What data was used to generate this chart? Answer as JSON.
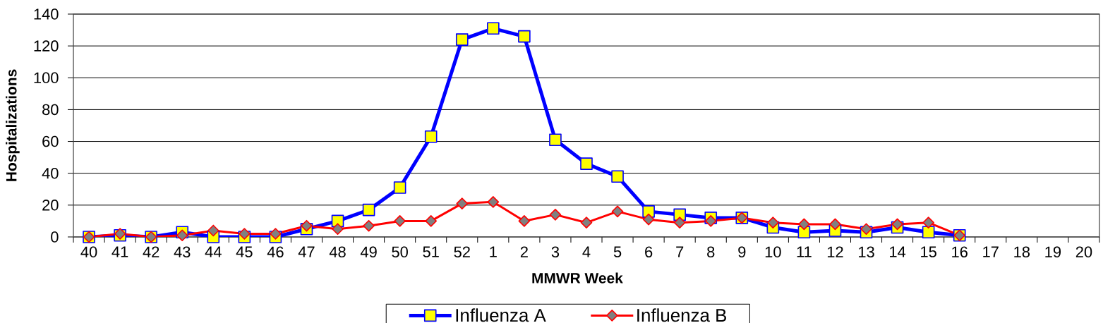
{
  "chart_data": {
    "type": "line",
    "xlabel": "MMWR Week",
    "ylabel": "Hospitalizations",
    "categories": [
      "40",
      "41",
      "42",
      "43",
      "44",
      "45",
      "46",
      "47",
      "48",
      "49",
      "50",
      "51",
      "52",
      "1",
      "2",
      "3",
      "4",
      "5",
      "6",
      "7",
      "8",
      "9",
      "10",
      "11",
      "12",
      "13",
      "14",
      "15",
      "16",
      "17",
      "18",
      "19",
      "20"
    ],
    "series": [
      {
        "name": "Influenza A",
        "color": "#0000ff",
        "marker": "square",
        "values": [
          0,
          1,
          0,
          3,
          0,
          0,
          0,
          5,
          10,
          17,
          31,
          63,
          124,
          131,
          126,
          61,
          46,
          38,
          16,
          14,
          12,
          12,
          6,
          3,
          4,
          3,
          6,
          3,
          1,
          null,
          null,
          null,
          null
        ]
      },
      {
        "name": "Influenza B",
        "color": "#ff0000",
        "marker": "diamond",
        "values": [
          0,
          2,
          0,
          1,
          4,
          2,
          2,
          7,
          5,
          7,
          10,
          10,
          21,
          22,
          10,
          14,
          9,
          16,
          11,
          9,
          10,
          12,
          9,
          8,
          8,
          5,
          8,
          9,
          1,
          null,
          null,
          null,
          null
        ]
      }
    ],
    "ylim": [
      0,
      140
    ],
    "yticks": [
      0,
      20,
      40,
      60,
      80,
      100,
      120,
      140
    ],
    "grid": "y",
    "legend": "bottom"
  }
}
